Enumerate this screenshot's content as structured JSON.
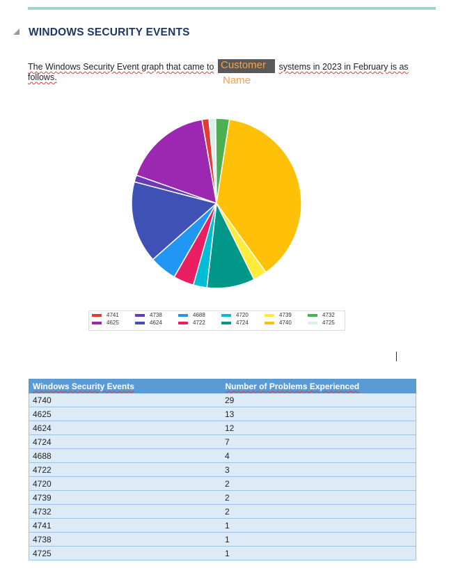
{
  "heading": "WINDOWS SECURITY EVENTS",
  "paragraph": {
    "part1": "The Windows Security Event graph that came to",
    "placeholder_line1": "Customer",
    "placeholder_line2": "Name",
    "part2": "systems in 2023 in February is as",
    "part3": "follows."
  },
  "colors": {
    "4741": "#e53935",
    "4625": "#9c27b0",
    "4738": "#673ab7",
    "4624": "#3f51b5",
    "4688": "#2196f3",
    "4722": "#e91e63",
    "4720": "#00bcd4",
    "4724": "#009688",
    "4739": "#ffeb3b",
    "4740": "#ffc107",
    "4732": "#4caf50",
    "4725": "#d7f0ea"
  },
  "chart_data": {
    "type": "pie",
    "slices": [
      {
        "label": "4725",
        "value": 1
      },
      {
        "label": "4732",
        "value": 2
      },
      {
        "label": "4740",
        "value": 29
      },
      {
        "label": "4739",
        "value": 2
      },
      {
        "label": "4724",
        "value": 7
      },
      {
        "label": "4720",
        "value": 2
      },
      {
        "label": "4722",
        "value": 3
      },
      {
        "label": "4688",
        "value": 4
      },
      {
        "label": "4624",
        "value": 12
      },
      {
        "label": "4738",
        "value": 1
      },
      {
        "label": "4625",
        "value": 13
      },
      {
        "label": "4741",
        "value": 1
      }
    ],
    "legend": [
      [
        "4741",
        "4625"
      ],
      [
        "4738",
        "4624"
      ],
      [
        "4688",
        "4722"
      ],
      [
        "4720",
        "4724"
      ],
      [
        "4739",
        "4740"
      ],
      [
        "4732",
        "4725"
      ]
    ],
    "legend_position": "bottom"
  },
  "table": {
    "headers": [
      "Windows Security Events",
      "Number of Problems Experienced"
    ],
    "rows": [
      [
        "4740",
        "29"
      ],
      [
        "4625",
        "13"
      ],
      [
        "4624",
        "12"
      ],
      [
        "4724",
        "7"
      ],
      [
        "4688",
        "4"
      ],
      [
        "4722",
        "3"
      ],
      [
        "4720",
        "2"
      ],
      [
        "4739",
        "2"
      ],
      [
        "4732",
        "2"
      ],
      [
        "4741",
        "1"
      ],
      [
        "4738",
        "1"
      ],
      [
        "4725",
        "1"
      ]
    ]
  }
}
